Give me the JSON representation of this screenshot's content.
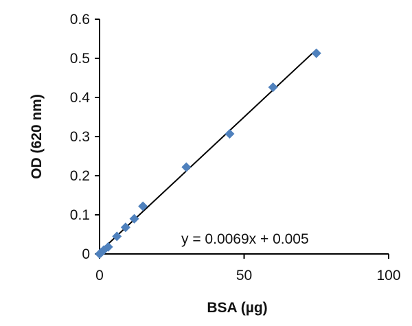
{
  "chart_data": {
    "type": "scatter",
    "title": "",
    "xlabel": "BSA (µg)",
    "ylabel": "OD (620 nm)",
    "xlim": [
      0,
      100
    ],
    "ylim": [
      0,
      0.6
    ],
    "xticks": [
      0,
      50,
      100
    ],
    "xtick_labels": [
      "0",
      "50",
      "100"
    ],
    "yticks": [
      0,
      0.1,
      0.2,
      0.3,
      0.4,
      0.5,
      0.6
    ],
    "ytick_labels": [
      "0",
      "0.1",
      "0.2",
      "0.3",
      "0.4",
      "0.5",
      "0.6"
    ],
    "grid": false,
    "legend": "none",
    "marker_color": "#4F81BD",
    "series": [
      {
        "x": [
          0,
          0.5,
          1.5,
          3,
          6,
          9,
          12,
          15,
          30,
          45,
          60,
          75
        ],
        "y": [
          0,
          0.003,
          0.01,
          0.018,
          0.045,
          0.068,
          0.09,
          0.122,
          0.222,
          0.307,
          0.426,
          0.513
        ]
      }
    ],
    "trendline": {
      "type": "linear",
      "slope": 0.0069,
      "intercept": 0.005,
      "x_range": [
        0,
        75
      ],
      "color": "#000000",
      "equation_label": "y = 0.0069x + 0.005"
    }
  }
}
